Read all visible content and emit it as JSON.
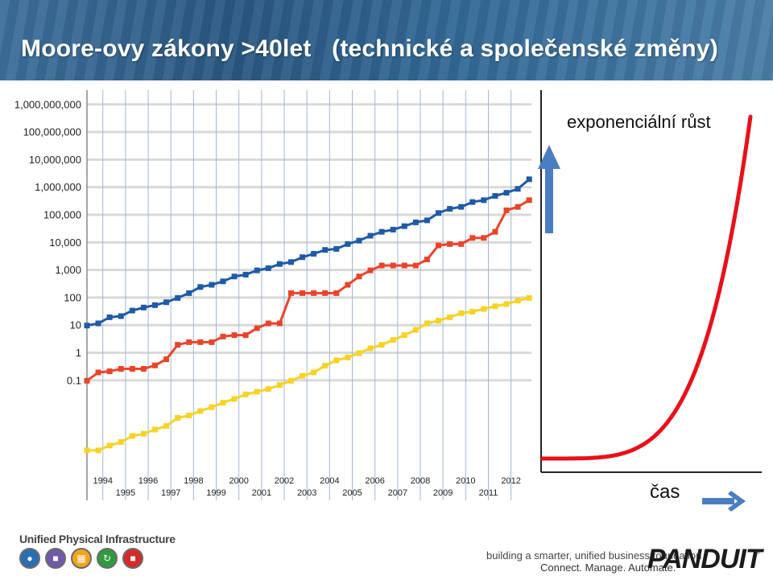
{
  "title": "Moore-ovy zákony >40let   (technické a společenské změny)",
  "chart_data": {
    "type": "line",
    "scale": "log",
    "yticks": [
      "1,000,000,000",
      "100,000,000",
      "10,000,000",
      "1,000,000",
      "100,000",
      "10,000",
      "1,000",
      "100",
      "10",
      "1",
      "0.1"
    ],
    "xticks_top": [
      "1994",
      "1996",
      "1998",
      "2000",
      "2002",
      "2004",
      "2006",
      "2008",
      "2010",
      "2012"
    ],
    "xticks_bottom": [
      "1995",
      "1997",
      "1999",
      "2001",
      "2003",
      "2005",
      "2007",
      "2009",
      "2011"
    ],
    "series": [
      {
        "color": "#1f5aa6",
        "x": [
          1993.3,
          1993.8,
          1994.3,
          1994.8,
          1995.3,
          1995.8,
          1996.3,
          1996.8,
          1997.3,
          1997.8,
          1998.3,
          1998.8,
          1999.3,
          1999.8,
          2000.3,
          2000.8,
          2001.3,
          2001.8,
          2002.3,
          2002.8,
          2003.3,
          2003.8,
          2004.3,
          2004.8,
          2005.3,
          2005.8,
          2006.3,
          2006.8,
          2007.3,
          2007.8,
          2008.3,
          2008.8,
          2009.3,
          2009.8,
          2010.3,
          2010.8,
          2011.3,
          2011.8,
          2012.3,
          2012.8
        ],
        "y": [
          10,
          12,
          20,
          22,
          35,
          45,
          55,
          70,
          100,
          150,
          250,
          300,
          400,
          600,
          700,
          1000,
          1200,
          1700,
          2000,
          3000,
          4000,
          5500,
          6000,
          9000,
          12000,
          18000,
          25000,
          30000,
          40000,
          55000,
          65000,
          120000,
          170000,
          200000,
          300000,
          350000,
          500000,
          650000,
          900000,
          2000000
        ]
      },
      {
        "color": "#e9442b",
        "x": [
          1993.3,
          1993.8,
          1994.3,
          1994.8,
          1995.3,
          1995.8,
          1996.3,
          1996.8,
          1997.3,
          1997.8,
          1998.3,
          1998.8,
          1999.3,
          1999.8,
          2000.3,
          2000.8,
          2001.3,
          2001.8,
          2002.3,
          2002.8,
          2003.3,
          2003.8,
          2004.3,
          2004.8,
          2005.3,
          2005.8,
          2006.3,
          2006.8,
          2007.3,
          2007.8,
          2008.3,
          2008.8,
          2009.3,
          2009.8,
          2010.3,
          2010.8,
          2011.3,
          2011.8,
          2012.3,
          2012.8
        ],
        "y": [
          0.1,
          0.2,
          0.22,
          0.27,
          0.27,
          0.27,
          0.36,
          0.6,
          2,
          2.5,
          2.5,
          2.5,
          4,
          4.5,
          4.5,
          8,
          12,
          12,
          150,
          150,
          150,
          150,
          150,
          300,
          600,
          1000,
          1500,
          1500,
          1500,
          1500,
          2500,
          8000,
          9000,
          9000,
          15000,
          15000,
          25000,
          150000,
          200000,
          350000
        ]
      },
      {
        "color": "#f5d327",
        "x": [
          1993.3,
          1993.8,
          1994.3,
          1994.8,
          1995.3,
          1995.8,
          1996.3,
          1996.8,
          1997.3,
          1997.8,
          1998.3,
          1998.8,
          1999.3,
          1999.8,
          2000.3,
          2000.8,
          2001.3,
          2001.8,
          2002.3,
          2002.8,
          2003.3,
          2003.8,
          2004.3,
          2004.8,
          2005.3,
          2005.8,
          2006.3,
          2006.8,
          2007.3,
          2007.8,
          2008.3,
          2008.8,
          2009.3,
          2009.8,
          2010.3,
          2010.8,
          2011.3,
          2011.8,
          2012.3,
          2012.8
        ],
        "y": [
          0.0003,
          0.0003,
          0.00045,
          0.0006,
          0.001,
          0.0012,
          0.0017,
          0.0023,
          0.0045,
          0.0055,
          0.008,
          0.011,
          0.016,
          0.022,
          0.032,
          0.04,
          0.05,
          0.07,
          0.1,
          0.15,
          0.2,
          0.35,
          0.55,
          0.7,
          1,
          1.5,
          2,
          3,
          4.5,
          7,
          12,
          15,
          20,
          28,
          32,
          40,
          50,
          60,
          80,
          100
        ]
      }
    ]
  },
  "exp": {
    "label": "exponenciální růst",
    "xlabel": "čas",
    "curve_color": "#e8101a",
    "arrow_color": "#4a7ec0"
  },
  "footer": {
    "left_title": "Unified Physical Infrastructure",
    "tag1": "building a smarter, unified business foundation",
    "tag2": "Connect. Manage. Automate.",
    "brand": "PANDUIT",
    "brand_reg": "®"
  }
}
